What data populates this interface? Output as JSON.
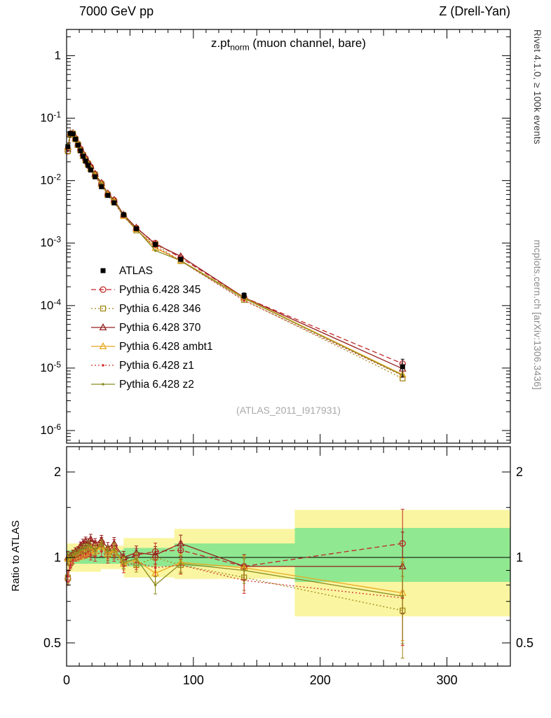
{
  "header": {
    "left": "7000 GeV pp",
    "right": "Z (Drell-Yan)"
  },
  "title": {
    "main": "z.pt",
    "sub": "norm",
    "rest": " (muon channel, bare)"
  },
  "side": {
    "top": "Rivet 4.1.0, ≥ 100k events",
    "bottom": "mcplots.cern.ch [arXiv:1306.3436]"
  },
  "watermark": "(ATLAS_2011_I917931)",
  "ratio_ylabel": "Ratio to ATLAS",
  "chart_data": {
    "type": "line",
    "title": "z.pt_norm (muon channel, bare)",
    "x": [
      1,
      3,
      5,
      7,
      9,
      11,
      13,
      15,
      17,
      19,
      22.5,
      27.5,
      32.5,
      37.5,
      45,
      55,
      70,
      90,
      140,
      265
    ],
    "atlas": {
      "label": "ATLAS",
      "color": "#000000",
      "values": [
        0.035,
        0.057,
        0.056,
        0.046,
        0.037,
        0.03,
        0.0245,
        0.0205,
        0.0175,
        0.0148,
        0.0115,
        0.008,
        0.0058,
        0.0044,
        0.00285,
        0.0017,
        0.00095,
        0.00055,
        0.000145,
        1.05e-05
      ],
      "err_frac": [
        0.05,
        0.03,
        0.03,
        0.03,
        0.03,
        0.03,
        0.035,
        0.035,
        0.04,
        0.04,
        0.04,
        0.04,
        0.045,
        0.05,
        0.05,
        0.055,
        0.07,
        0.07,
        0.1,
        0.32
      ]
    },
    "series": [
      {
        "name": "Pythia 6.428 345",
        "color": "#c02828",
        "line": "dashed",
        "marker": "circle",
        "ratio": [
          0.84,
          0.95,
          1.0,
          1.03,
          1.04,
          1.07,
          1.06,
          1.1,
          1.08,
          1.12,
          1.1,
          1.13,
          1.05,
          1.1,
          0.98,
          1.02,
          1.05,
          1.06,
          0.93,
          1.12
        ]
      },
      {
        "name": "Pythia 6.428 346",
        "color": "#a08818",
        "line": "dotted",
        "marker": "square",
        "ratio": [
          0.85,
          0.96,
          1.01,
          1.0,
          1.03,
          1.02,
          1.05,
          1.04,
          1.07,
          1.05,
          1.08,
          1.1,
          1.02,
          1.04,
          0.96,
          0.94,
          1.0,
          0.94,
          0.85,
          0.65
        ]
      },
      {
        "name": "Pythia 6.428 370",
        "color": "#962020",
        "line": "solid",
        "marker": "triangle",
        "ratio": [
          1.0,
          1.01,
          1.03,
          1.05,
          1.06,
          1.1,
          1.12,
          1.14,
          1.12,
          1.16,
          1.12,
          1.15,
          1.08,
          1.12,
          1.0,
          1.04,
          1.02,
          1.12,
          0.93,
          0.93
        ]
      },
      {
        "name": "Pythia 6.428 ambt1",
        "color": "#e8a820",
        "line": "solid",
        "marker": "triangle",
        "ratio": [
          0.99,
          0.98,
          1.0,
          1.01,
          1.0,
          1.03,
          1.02,
          1.05,
          1.04,
          1.06,
          1.05,
          1.09,
          1.03,
          1.06,
          0.95,
          0.98,
          0.88,
          0.96,
          0.92,
          0.75
        ]
      },
      {
        "name": "Pythia 6.428 z1",
        "color": "#d03030",
        "line": "dotted",
        "marker": "dot",
        "ratio": [
          0.86,
          0.94,
          0.98,
          1.0,
          1.01,
          1.02,
          1.04,
          1.03,
          1.05,
          1.02,
          1.01,
          1.05,
          1.0,
          1.02,
          0.93,
          0.96,
          0.92,
          0.94,
          0.83,
          0.72
        ]
      },
      {
        "name": "Pythia 6.428 z2",
        "color": "#8a8a20",
        "line": "solid",
        "marker": "dot",
        "ratio": [
          0.99,
          1.0,
          1.02,
          1.03,
          1.04,
          1.06,
          1.07,
          1.08,
          1.1,
          1.09,
          1.06,
          1.11,
          1.05,
          1.07,
          0.96,
          0.99,
          0.8,
          0.95,
          0.9,
          0.73
        ]
      }
    ],
    "bands": {
      "yellow": {
        "color": "#faf5a0",
        "segments": [
          [
            0,
            27,
            0.89,
            1.12
          ],
          [
            27,
            45,
            0.91,
            1.1
          ],
          [
            45,
            85,
            0.85,
            1.17
          ],
          [
            85,
            180,
            0.84,
            1.26
          ],
          [
            180,
            350,
            0.62,
            1.47
          ]
        ]
      },
      "green": {
        "color": "#90e890",
        "segments": [
          [
            0,
            45,
            0.95,
            1.06
          ],
          [
            45,
            85,
            0.93,
            1.08
          ],
          [
            85,
            180,
            0.93,
            1.12
          ],
          [
            180,
            350,
            0.82,
            1.27
          ]
        ]
      }
    },
    "axes": {
      "x_max": 350,
      "x_ticks": [
        0,
        100,
        200,
        300
      ],
      "y_tick_labels": [
        "1",
        "10^-1",
        "10^-2",
        "10^-3",
        "10^-4",
        "10^-5",
        "10^-6"
      ],
      "ratio_ticks": [
        [
          "2",
          2
        ],
        [
          "1",
          1
        ],
        [
          "0.5",
          0.5
        ]
      ],
      "y_scale": "log",
      "ratio_scale": "log",
      "ylim": [
        1e-06,
        2
      ],
      "ratio_ylim": [
        0.42,
        2.4
      ],
      "legend_position": "middle-left"
    }
  }
}
